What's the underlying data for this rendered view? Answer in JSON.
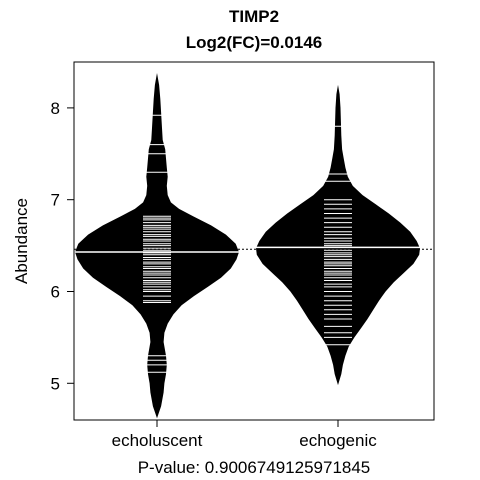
{
  "chart_data": {
    "type": "beanplot",
    "title": "TIMP2",
    "subtitle": "Log2(FC)=0.0146",
    "ylabel": "Abundance",
    "xlabel": "P-value: 0.9006749125971845",
    "categories": [
      "echoluscent",
      "echogenic"
    ],
    "yticks": [
      5,
      6,
      7,
      8
    ],
    "ylim": [
      4.6,
      8.5
    ],
    "overall_mean": 6.46,
    "series": [
      {
        "name": "echoluscent",
        "group_mean": 6.43,
        "density_profile": [
          [
            4.62,
            0.0
          ],
          [
            4.75,
            0.05
          ],
          [
            4.9,
            0.08
          ],
          [
            5.0,
            0.09
          ],
          [
            5.1,
            0.11
          ],
          [
            5.2,
            0.12
          ],
          [
            5.3,
            0.11
          ],
          [
            5.45,
            0.08
          ],
          [
            5.55,
            0.09
          ],
          [
            5.65,
            0.13
          ],
          [
            5.75,
            0.2
          ],
          [
            5.85,
            0.3
          ],
          [
            5.95,
            0.45
          ],
          [
            6.05,
            0.62
          ],
          [
            6.15,
            0.78
          ],
          [
            6.25,
            0.9
          ],
          [
            6.35,
            0.97
          ],
          [
            6.43,
            1.0
          ],
          [
            6.52,
            0.96
          ],
          [
            6.62,
            0.84
          ],
          [
            6.72,
            0.66
          ],
          [
            6.82,
            0.44
          ],
          [
            6.9,
            0.27
          ],
          [
            6.97,
            0.17
          ],
          [
            7.05,
            0.13
          ],
          [
            7.15,
            0.12
          ],
          [
            7.25,
            0.13
          ],
          [
            7.35,
            0.12
          ],
          [
            7.45,
            0.11
          ],
          [
            7.55,
            0.1
          ],
          [
            7.65,
            0.07
          ],
          [
            7.8,
            0.06
          ],
          [
            7.95,
            0.05
          ],
          [
            8.1,
            0.04
          ],
          [
            8.25,
            0.025
          ],
          [
            8.38,
            0.0
          ]
        ],
        "observations": [
          5.12,
          5.2,
          5.25,
          5.3,
          5.88,
          5.9,
          5.95,
          6.0,
          6.02,
          6.05,
          6.08,
          6.1,
          6.12,
          6.15,
          6.18,
          6.2,
          6.22,
          6.25,
          6.27,
          6.3,
          6.32,
          6.35,
          6.37,
          6.4,
          6.42,
          6.45,
          6.47,
          6.5,
          6.52,
          6.55,
          6.57,
          6.6,
          6.62,
          6.65,
          6.68,
          6.7,
          6.72,
          6.75,
          6.78,
          6.8,
          6.82,
          7.3,
          7.5,
          7.6,
          7.92
        ]
      },
      {
        "name": "echogenic",
        "group_mean": 6.48,
        "density_profile": [
          [
            4.98,
            0.0
          ],
          [
            5.1,
            0.04
          ],
          [
            5.2,
            0.06
          ],
          [
            5.3,
            0.09
          ],
          [
            5.4,
            0.13
          ],
          [
            5.5,
            0.2
          ],
          [
            5.6,
            0.28
          ],
          [
            5.7,
            0.36
          ],
          [
            5.8,
            0.43
          ],
          [
            5.9,
            0.5
          ],
          [
            6.0,
            0.58
          ],
          [
            6.1,
            0.68
          ],
          [
            6.2,
            0.8
          ],
          [
            6.3,
            0.92
          ],
          [
            6.4,
            0.99
          ],
          [
            6.47,
            1.0
          ],
          [
            6.55,
            0.96
          ],
          [
            6.65,
            0.88
          ],
          [
            6.75,
            0.76
          ],
          [
            6.85,
            0.62
          ],
          [
            6.95,
            0.46
          ],
          [
            7.05,
            0.3
          ],
          [
            7.15,
            0.18
          ],
          [
            7.25,
            0.12
          ],
          [
            7.35,
            0.09
          ],
          [
            7.45,
            0.07
          ],
          [
            7.55,
            0.05
          ],
          [
            7.7,
            0.04
          ],
          [
            7.85,
            0.035
          ],
          [
            8.0,
            0.03
          ],
          [
            8.15,
            0.02
          ],
          [
            8.25,
            0.0
          ]
        ],
        "observations": [
          5.42,
          5.5,
          5.55,
          5.62,
          5.7,
          5.75,
          5.8,
          5.85,
          5.9,
          5.95,
          6.0,
          6.05,
          6.08,
          6.12,
          6.15,
          6.18,
          6.2,
          6.22,
          6.25,
          6.28,
          6.3,
          6.32,
          6.35,
          6.38,
          6.4,
          6.42,
          6.45,
          6.48,
          6.5,
          6.52,
          6.55,
          6.58,
          6.62,
          6.65,
          6.7,
          6.75,
          6.8,
          6.85,
          6.9,
          6.95,
          7.0,
          7.2,
          7.28,
          7.8
        ]
      }
    ]
  }
}
